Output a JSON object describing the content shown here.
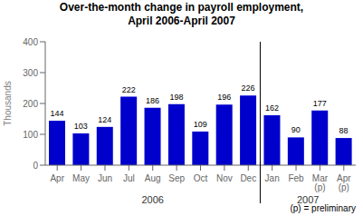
{
  "chart_data": {
    "type": "bar",
    "title": "Over-the-month change in payroll employment,\nApril 2006-April 2007",
    "ylabel": "Thousands",
    "categories": [
      "Apr",
      "May",
      "Jun",
      "Jul",
      "Aug",
      "Sep",
      "Oct",
      "Nov",
      "Dec",
      "Jan",
      "Feb",
      "Mar\n(p)",
      "Apr\n(p)"
    ],
    "values": [
      144,
      103,
      124,
      222,
      186,
      198,
      109,
      196,
      226,
      162,
      90,
      177,
      88
    ],
    "color": "#0000cc",
    "ylim": [
      0,
      400
    ],
    "yticks": [
      0,
      100,
      200,
      300,
      400
    ],
    "data_labels": true,
    "annotations": [
      {
        "text": "2006",
        "from": "Apr",
        "to": "Dec"
      },
      {
        "text": "2007",
        "from": "Jan",
        "to": "Apr\n(p)"
      },
      {
        "text": "(p) = preliminary"
      }
    ]
  }
}
